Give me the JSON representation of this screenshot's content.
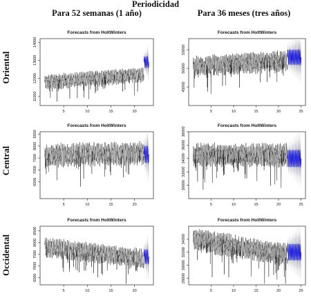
{
  "header": {
    "title": "Periodicidad",
    "columns": [
      "Para 52 semanas (1 año)",
      "Para 36 meses (tres años)"
    ]
  },
  "rows": [
    "Oriental",
    "Central",
    "Occidental"
  ],
  "colors": {
    "history": "#1a1a1a",
    "forecast": "#1010dd",
    "band_inner": "#a8a8c8",
    "band_outer": "#dcdcdc"
  },
  "chart_data": [
    {
      "type": "line",
      "title": "Forecasts from HoltWinters",
      "ylim": [
        10500,
        14200
      ],
      "yticks": [
        11000,
        12000,
        13000,
        14000
      ],
      "xlim": [
        0,
        24
      ],
      "xticks": [
        5,
        10,
        15,
        20
      ],
      "series": [
        {
          "x_start": 1,
          "x_end": 22,
          "period": 1,
          "level_start": 11800,
          "level_end": 12200,
          "amplitude": 600,
          "forecast_x_end": 23,
          "forecast_level": 12900
        }
      ]
    },
    {
      "type": "line",
      "title": "Forecasts from HoltWinters",
      "ylim": [
        40000,
        58000
      ],
      "yticks": [
        45000,
        50000,
        55000
      ],
      "xlim": [
        0,
        26
      ],
      "xticks": [
        5,
        10,
        15,
        20,
        25
      ],
      "series": [
        {
          "x_start": 1,
          "x_end": 22,
          "period": 1,
          "level_start": 50500,
          "level_end": 52000,
          "amplitude": 4000,
          "forecast_x_end": 25,
          "forecast_level": 53000
        }
      ]
    },
    {
      "type": "line",
      "title": "Forecasts from HoltWinters",
      "ylim": [
        5800,
        8600
      ],
      "yticks": [
        6500,
        7000,
        7500,
        8000,
        8500
      ],
      "xlim": [
        0,
        24
      ],
      "xticks": [
        5,
        10,
        15,
        20
      ],
      "series": [
        {
          "x_start": 1,
          "x_end": 22,
          "period": 1,
          "level_start": 7600,
          "level_end": 7700,
          "amplitude": 700,
          "forecast_x_end": 23,
          "forecast_level": 7650
        }
      ]
    },
    {
      "type": "line",
      "title": "Forecasts from HoltWinters",
      "ylim": [
        28000,
        38000
      ],
      "yticks": [
        30000,
        32000,
        34000,
        36000,
        38000
      ],
      "xlim": [
        0,
        26
      ],
      "xticks": [
        5,
        10,
        15,
        20,
        25
      ],
      "series": [
        {
          "x_start": 1,
          "x_end": 22,
          "period": 1,
          "level_start": 34500,
          "level_end": 34500,
          "amplitude": 2500,
          "forecast_x_end": 25,
          "forecast_level": 34000
        }
      ]
    },
    {
      "type": "line",
      "title": "Forecasts from HoltWinters",
      "ylim": [
        6200,
        8700
      ],
      "yticks": [
        6500,
        7000,
        7500,
        8000,
        8500
      ],
      "xlim": [
        0,
        24
      ],
      "xticks": [
        5,
        10,
        15,
        20
      ],
      "series": [
        {
          "x_start": 1,
          "x_end": 22,
          "period": 1,
          "level_start": 7800,
          "level_end": 7300,
          "amplitude": 600,
          "forecast_x_end": 23,
          "forecast_level": 7400
        }
      ]
    },
    {
      "type": "line",
      "title": "Forecasts from HoltWinters",
      "ylim": [
        27000,
        36000
      ],
      "yticks": [
        28000,
        30000,
        32000,
        34000
      ],
      "xlim": [
        0,
        26
      ],
      "xticks": [
        5,
        10,
        15,
        20,
        25
      ],
      "series": [
        {
          "x_start": 1,
          "x_end": 22,
          "period": 1,
          "level_start": 34000,
          "level_end": 31500,
          "amplitude": 2500,
          "forecast_x_end": 25,
          "forecast_level": 32000
        }
      ]
    }
  ]
}
